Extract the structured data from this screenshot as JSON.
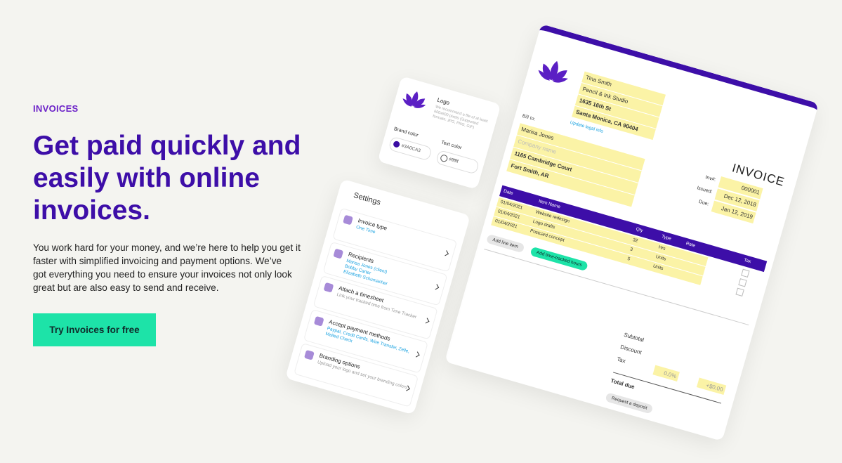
{
  "hero": {
    "eyebrow": "INVOICES",
    "title_lines": [
      "Get paid quickly and",
      "easily with online",
      "invoices."
    ],
    "body_lines": [
      "You work hard for your money, and we’re here to help you get it",
      "faster with simplified invoicing and payment options. We’ve",
      "got everything you need to ensure your invoices not only look",
      "great but are also easy to send and receive."
    ],
    "cta": "Try Invoices for free"
  },
  "logo_card": {
    "label": "Logo",
    "hint": "We recommend a file of at least 600x600 pixels (Supported formats: JPG, PNG, GIF)",
    "brand_color_label": "Brand color",
    "brand_color": "#3A0CA3",
    "text_color_label": "Text color",
    "text_color": "#ffffff"
  },
  "settings": {
    "title": "Settings",
    "items": [
      {
        "title": "Invoice type",
        "detail": [
          "One Time"
        ]
      },
      {
        "title": "Recipients",
        "detail": [
          "Marisa Jones (client)",
          "Bobby Carter",
          "Elizabeth Schumacher"
        ]
      },
      {
        "title": "Attach a timesheet",
        "detail": [
          "Link your tracked time from Time Tracker"
        ]
      },
      {
        "title": "Accept payment methods",
        "detail": [
          "Paypal, Credit Cards, Wire Transfer, Zelle,",
          "Mailed Check"
        ]
      },
      {
        "title": "Branding options",
        "detail": [
          "Upload your logo and set your branding colors"
        ]
      }
    ]
  },
  "invoice": {
    "from": [
      "Tina Smith",
      "Pencil & Ink Studio",
      "1635 16th St",
      "Santa Monica, CA 90404"
    ],
    "update_link": "Update legal info",
    "bill_to_label": "Bill to:",
    "bill_to": [
      "Marisa Jones",
      "Company name",
      "1165 Cambridge Court",
      "Fort Smith, AR"
    ],
    "heading": "INVOICE",
    "meta": [
      [
        "Inv#:",
        "000001"
      ],
      [
        "Issued:",
        "Dec 12, 2018"
      ],
      [
        "Due:",
        "Jan 12, 2019"
      ]
    ],
    "columns": [
      "Date",
      "Item Name",
      "Qty",
      "Type",
      "Rate",
      "Tax"
    ],
    "rows": [
      [
        "01/04/2021",
        "Website redesign",
        "32",
        "Hrs"
      ],
      [
        "01/04/2021",
        "Logo drafts",
        "3",
        "Units"
      ],
      [
        "01/04/2021",
        "Postcard concept",
        "5",
        "Units"
      ]
    ],
    "add_line": "Add line item",
    "add_hours": "Add time-tracked hours",
    "subtotal": "Subtotal",
    "discount": "Discount",
    "tax": "Tax",
    "tax_rate": "0.0%",
    "tax_amount": "+$0.00",
    "total": "Total due",
    "deposit": "Request a deposit"
  }
}
